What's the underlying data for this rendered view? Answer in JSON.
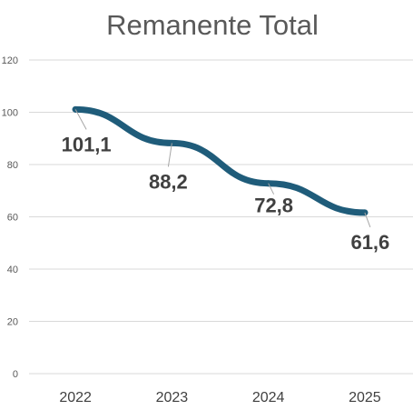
{
  "chart_data": {
    "type": "line",
    "title": "Remanente Total",
    "categories": [
      "2022",
      "2023",
      "2024",
      "2025"
    ],
    "series": [
      {
        "values": [
          101.1,
          88.2,
          72.8,
          61.6
        ],
        "color": "#1f5c7a"
      }
    ],
    "data_labels": [
      "101,1",
      "88,2",
      "72,8",
      "61,6"
    ],
    "ylim": [
      0,
      120
    ],
    "yticks": [
      0,
      20,
      40,
      60,
      80,
      100,
      120
    ],
    "grid": true,
    "legend": "none"
  }
}
